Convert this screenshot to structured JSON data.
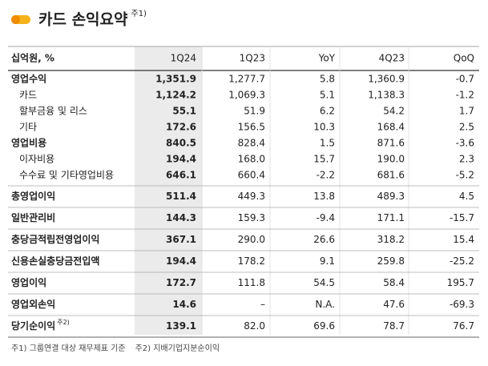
{
  "header": {
    "title": "카드 손익요약",
    "note": "주1)"
  },
  "table": {
    "columns": [
      "십억원, %",
      "1Q24",
      "1Q23",
      "YoY",
      "4Q23",
      "QoQ"
    ],
    "sections": [
      [
        {
          "label": "영업수익",
          "values": [
            "1,351.9",
            "1,277.7",
            "5.8",
            "1,360.9",
            "-0.7"
          ],
          "items": [
            {
              "label": "카드",
              "values": [
                "1,124.2",
                "1,069.3",
                "5.1",
                "1,138.3",
                "-1.2"
              ]
            },
            {
              "label": "할부금융 및 리스",
              "values": [
                "55.1",
                "51.9",
                "6.2",
                "54.2",
                "1.7"
              ]
            },
            {
              "label": "기타",
              "values": [
                "172.6",
                "156.5",
                "10.3",
                "168.4",
                "2.5"
              ]
            }
          ]
        },
        {
          "label": "영업비용",
          "values": [
            "840.5",
            "828.4",
            "1.5",
            "871.6",
            "-3.6"
          ],
          "items": [
            {
              "label": "이자비용",
              "values": [
                "194.4",
                "168.0",
                "15.7",
                "190.0",
                "2.3"
              ]
            },
            {
              "label": "수수료 및 기타영업비용",
              "values": [
                "646.1",
                "660.4",
                "-2.2",
                "681.6",
                "-5.2"
              ]
            }
          ]
        }
      ],
      [
        {
          "label": "총영업이익",
          "values": [
            "511.4",
            "449.3",
            "13.8",
            "489.3",
            "4.5"
          ]
        }
      ],
      [
        {
          "label": "일반관리비",
          "values": [
            "144.3",
            "159.3",
            "-9.4",
            "171.1",
            "-15.7"
          ]
        }
      ],
      [
        {
          "label": "충당금적립전영업이익",
          "values": [
            "367.1",
            "290.0",
            "26.6",
            "318.2",
            "15.4"
          ]
        }
      ],
      [
        {
          "label": "신용손실충당금전입액",
          "values": [
            "194.4",
            "178.2",
            "9.1",
            "259.8",
            "-25.2"
          ]
        }
      ],
      [
        {
          "label": "영업이익",
          "values": [
            "172.7",
            "111.8",
            "54.5",
            "58.4",
            "195.7"
          ]
        }
      ],
      [
        {
          "label": "영업외손익",
          "values": [
            "14.6",
            "–",
            "N.A.",
            "47.6",
            "-69.3"
          ]
        }
      ],
      [
        {
          "label": "당기순이익",
          "note": "주2)",
          "values": [
            "139.1",
            "82.0",
            "69.6",
            "78.7",
            "76.7"
          ]
        }
      ]
    ]
  },
  "footnotes": [
    "주1) 그룹연결 대상 재무제표 기준",
    "주2) 지배기업지분순이익"
  ]
}
